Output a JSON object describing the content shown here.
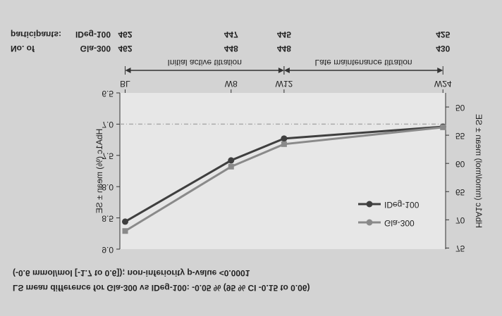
{
  "chart_data": {
    "type": "line",
    "x": [
      0,
      8,
      12,
      24
    ],
    "xlim": [
      -0.4,
      24.2
    ],
    "xticks": [
      {
        "value": 0,
        "label": "BL"
      },
      {
        "value": 8,
        "label": "W8"
      },
      {
        "value": 12,
        "label": "W12"
      },
      {
        "value": 24,
        "label": "W24"
      }
    ],
    "ylabel": "HbA1c (%) mean ± SE",
    "ylim": [
      6.5,
      9.0
    ],
    "yticks": [
      {
        "value": 6.5,
        "label": "6.5"
      },
      {
        "value": 7.0,
        "label": "7.0"
      },
      {
        "value": 7.5,
        "label": "7.5"
      },
      {
        "value": 8.0,
        "label": "8.0"
      },
      {
        "value": 8.5,
        "label": "8.5"
      },
      {
        "value": 9.0,
        "label": "9.0"
      }
    ],
    "y2label": "HbA1c (mmol/mol) mean ± SE",
    "y2lim": [
      47.5,
      75.2
    ],
    "y2ticks": [
      50,
      55,
      60,
      65,
      70,
      75
    ],
    "reference_line": 7.0,
    "participants_title": [
      "No. of",
      "participants:"
    ],
    "phases": [
      {
        "label": "Initial active titration",
        "from": 0,
        "to": 12
      },
      {
        "label": "Late maintenance titration",
        "from": 12,
        "to": 24
      }
    ],
    "series": [
      {
        "name": "IDeg-100",
        "color": "#3f3f3f",
        "marker": "circle",
        "values": [
          8.56,
          7.58,
          7.23,
          7.04
        ],
        "participants": [
          462,
          447,
          445,
          425
        ]
      },
      {
        "name": "Gla-300",
        "color": "#8a8a8a",
        "marker": "square",
        "values": [
          8.71,
          7.68,
          7.32,
          7.05
        ],
        "participants": [
          462,
          448,
          448,
          430
        ]
      }
    ],
    "legend": "lower right",
    "footnote": [
      "LS mean difference for Gla-300 vs IDeg-100: -0.05 % (95 % CI -0.15 to 0.06)",
      "(-0.6 mmol/mol [-1.7 to 0.6]); non-inferiority p-value <0.0001"
    ]
  }
}
